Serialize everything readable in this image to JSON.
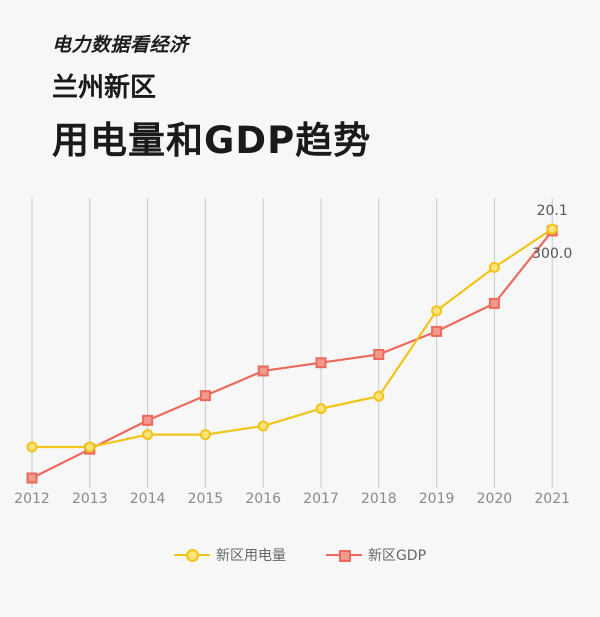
{
  "header": {
    "brand": "电力数据看经济",
    "title_line1": "兰州新区",
    "title_line2": "用电量和GDP趋势"
  },
  "chart_data": {
    "type": "line",
    "x": [
      "2012",
      "2013",
      "2014",
      "2015",
      "2016",
      "2017",
      "2018",
      "2019",
      "2020",
      "2021"
    ],
    "grid": "vertical",
    "legend_position": "bottom",
    "series": [
      {
        "name": "新区用电量",
        "color": "#f0c419",
        "marker": "circle",
        "values": [
          2.5,
          2.5,
          3.5,
          3.5,
          4.2,
          5.6,
          6.6,
          13.5,
          17.0,
          20.1
        ],
        "end_label": "20.1",
        "ylim": [
          0,
          22.6
        ]
      },
      {
        "name": "新区GDP",
        "color": "#ec6a5c",
        "marker": "square",
        "values": [
          0,
          35,
          70,
          100,
          130,
          140,
          150,
          178,
          212,
          300.0
        ],
        "end_label": "300.0",
        "ylim": [
          0,
          340
        ]
      }
    ]
  }
}
